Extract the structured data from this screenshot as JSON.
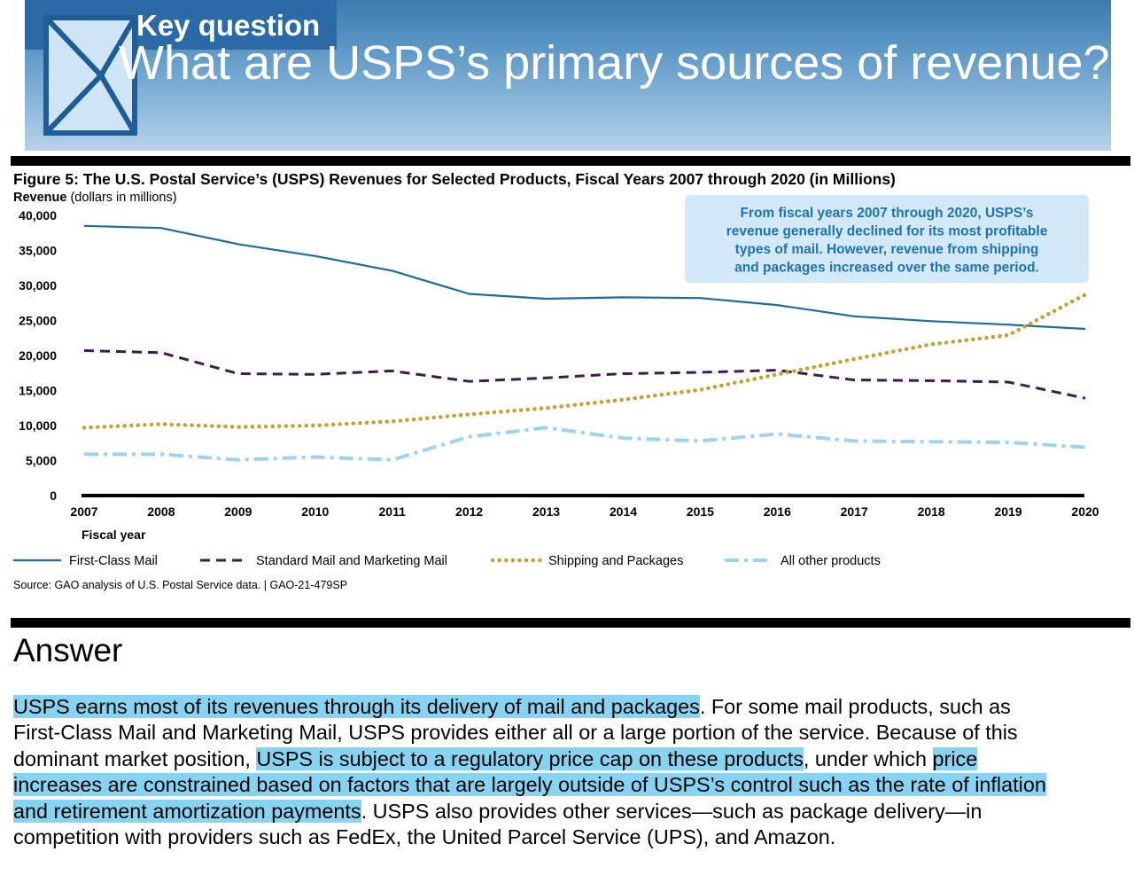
{
  "banner": {
    "kicker": "Key question",
    "question": "What are USPS’s primary sources of revenue?"
  },
  "chart_data": {
    "type": "line",
    "title": "Figure 5: The U.S. Postal Service’s (USPS) Revenues for Selected Products, Fiscal Years 2007 through 2020 (in Millions)",
    "ylabel_bold": "Revenue",
    "ylabel_rest": " (dollars in millions)",
    "xlabel": "Fiscal year",
    "x": [
      2007,
      2008,
      2009,
      2010,
      2011,
      2012,
      2013,
      2014,
      2015,
      2016,
      2017,
      2018,
      2019,
      2020
    ],
    "ylim": [
      0,
      40000
    ],
    "yticks": [
      "0",
      "5,000",
      "10,000",
      "15,000",
      "20,000",
      "25,000",
      "30,000",
      "35,000",
      "40,000"
    ],
    "series": [
      {
        "name": "First-Class Mail",
        "color": "#1f6aa2",
        "style": "solid",
        "values": [
          38500,
          38200,
          35900,
          34200,
          32100,
          28800,
          28100,
          28300,
          28200,
          27200,
          25600,
          24900,
          24400,
          23800
        ]
      },
      {
        "name": "Standard Mail and Marketing Mail",
        "color": "#3d1a4f",
        "style": "dashed",
        "values": [
          20700,
          20400,
          17400,
          17300,
          17800,
          16300,
          16800,
          17400,
          17600,
          17900,
          16500,
          16400,
          16200,
          13900
        ]
      },
      {
        "name": "Shipping and Packages",
        "color": "#c0a334",
        "style": "dotted",
        "values": [
          9700,
          10200,
          9800,
          10000,
          10600,
          11600,
          12500,
          13700,
          15100,
          17300,
          19500,
          21600,
          22900,
          28700
        ]
      },
      {
        "name": "All other products",
        "color": "#9dd3f0",
        "style": "dashdot",
        "values": [
          5900,
          5900,
          5100,
          5500,
          5100,
          8400,
          9700,
          8200,
          7800,
          8800,
          7800,
          7700,
          7600,
          6900
        ]
      }
    ],
    "annotation": [
      "From fiscal years 2007 through 2020, USPS’s",
      "revenue generally declined for its most profitable",
      "types of mail. However, revenue from shipping",
      "and packages increased over the same period."
    ],
    "annotation_color": "#d4e9f8",
    "source": "Source: GAO analysis of U.S. Postal Service data.  |  GAO-21-479SP"
  },
  "answer": {
    "title": "Answer",
    "highlight_color": "#86d3f2",
    "lines": [
      [
        {
          "t": "USPS earns most of its revenues through its delivery of mail and packages",
          "h": true
        },
        {
          "t": ". For some mail products, such as",
          "h": false
        }
      ],
      [
        {
          "t": "First-Class Mail and Marketing Mail, USPS provides either all or a large portion of the service.  Because of this",
          "h": false
        }
      ],
      [
        {
          "t": "dominant market position, ",
          "h": false
        },
        {
          "t": "USPS is subject to a regulatory price cap on these products",
          "h": true
        },
        {
          "t": ", under which ",
          "h": false
        },
        {
          "t": "price",
          "h": true
        }
      ],
      [
        {
          "t": "increases are constrained based on factors that are largely outside of USPS’s control such as the rate of inflation",
          "h": true
        }
      ],
      [
        {
          "t": "and retirement amortization payments",
          "h": true
        },
        {
          "t": ". USPS also provides other services—such as package delivery—in",
          "h": false
        }
      ],
      [
        {
          "t": "competition with providers such as FedEx, the United Parcel Service (UPS), and Amazon.",
          "h": false
        }
      ]
    ]
  }
}
